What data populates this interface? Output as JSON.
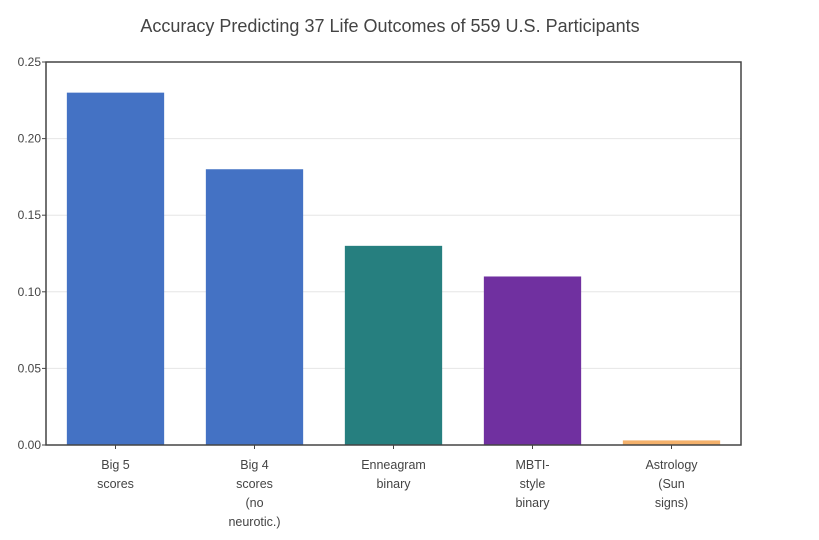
{
  "chart_data": {
    "type": "bar",
    "title": "Accuracy Predicting 37 Life Outcomes of 559 U.S. Participants",
    "xlabel": "",
    "ylabel": "",
    "ylim": [
      0,
      0.25
    ],
    "yticks": [
      "0.00",
      "0.05",
      "0.10",
      "0.15",
      "0.20",
      "0.25"
    ],
    "grid": true,
    "categories": [
      [
        "Big 5",
        "scores"
      ],
      [
        "Big 4",
        "scores",
        "(no",
        "neurotic.)"
      ],
      [
        "Enneagram",
        "binary"
      ],
      [
        "MBTI-",
        "style",
        "binary"
      ],
      [
        "Astrology",
        "(Sun",
        "signs)"
      ]
    ],
    "values": [
      0.23,
      0.18,
      0.13,
      0.11,
      0.003
    ],
    "colors": [
      "#4472c4",
      "#4472c4",
      "#267f7f",
      "#7030a0",
      "#f4b16b"
    ]
  }
}
